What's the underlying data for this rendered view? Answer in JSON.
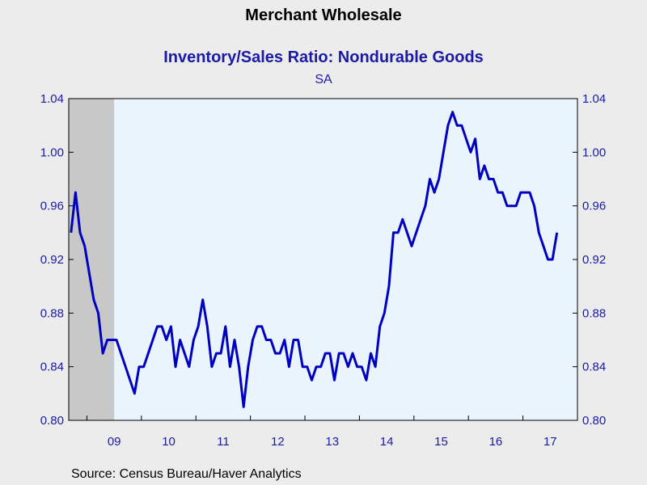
{
  "chart_data": {
    "type": "line",
    "title": "Merchant Wholesale",
    "subtitle": "Inventory/Sales Ratio: Nondurable Goods",
    "note": "SA",
    "source": "Source:  Census Bureau/Haver Analytics",
    "ylim": [
      0.8,
      1.04
    ],
    "yticks": [
      "0.80",
      "0.84",
      "0.88",
      "0.92",
      "0.96",
      "1.00",
      "1.04"
    ],
    "x_tick_labels": [
      "09",
      "10",
      "11",
      "12",
      "13",
      "14",
      "15",
      "16",
      "17"
    ],
    "x_start": "2008-09",
    "x_end": "2017-12",
    "recession_shading": [
      "2008-09",
      "2009-06"
    ],
    "grid": false,
    "colors": {
      "line": "#0000c0",
      "plot_bg": "#eaf4fd",
      "recession": "#c8c8c8",
      "axis_text": "#1a1aa6"
    },
    "series": [
      {
        "values": [
          0.94,
          0.97,
          0.94,
          0.93,
          0.91,
          0.89,
          0.88,
          0.85,
          0.86,
          0.86,
          0.86,
          0.85,
          0.84,
          0.83,
          0.82,
          0.84,
          0.84,
          0.85,
          0.86,
          0.87,
          0.87,
          0.86,
          0.87,
          0.84,
          0.86,
          0.85,
          0.84,
          0.86,
          0.87,
          0.89,
          0.87,
          0.84,
          0.85,
          0.85,
          0.87,
          0.84,
          0.86,
          0.84,
          0.81,
          0.84,
          0.86,
          0.87,
          0.87,
          0.86,
          0.86,
          0.85,
          0.85,
          0.86,
          0.84,
          0.86,
          0.86,
          0.84,
          0.84,
          0.83,
          0.84,
          0.84,
          0.85,
          0.85,
          0.83,
          0.85,
          0.85,
          0.84,
          0.85,
          0.84,
          0.84,
          0.83,
          0.85,
          0.84,
          0.87,
          0.88,
          0.9,
          0.94,
          0.94,
          0.95,
          0.94,
          0.93,
          0.94,
          0.95,
          0.96,
          0.98,
          0.97,
          0.98,
          1.0,
          1.02,
          1.03,
          1.02,
          1.02,
          1.01,
          1.0,
          1.01,
          0.98,
          0.99,
          0.98,
          0.98,
          0.97,
          0.97,
          0.96,
          0.96,
          0.96,
          0.97,
          0.97,
          0.97,
          0.96,
          0.94,
          0.93,
          0.92,
          0.92,
          0.94
        ]
      }
    ]
  }
}
